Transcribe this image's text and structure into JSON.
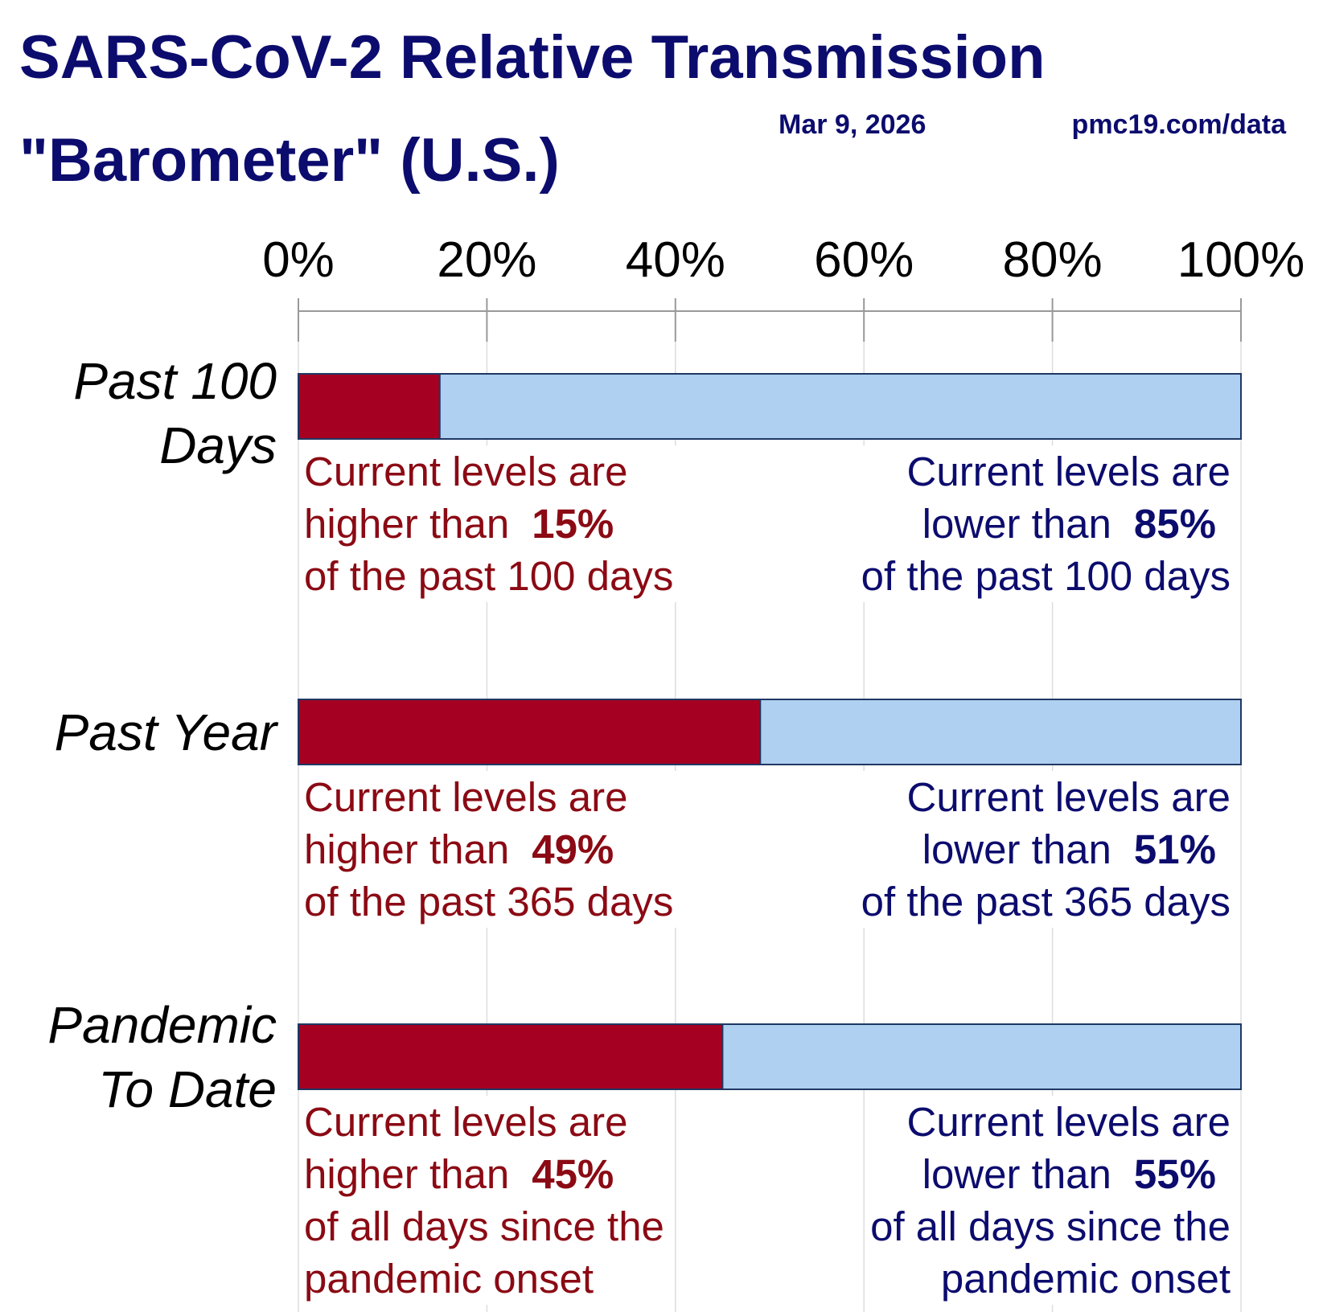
{
  "chart_data": {
    "type": "stacked-bar-horizontal",
    "title": "SARS-CoV-2 Relative Transmission \"Barometer\" (U.S.)",
    "date": "Mar 9, 2026",
    "source": "pmc19.com/data",
    "categories": [
      "Past 100 Days",
      "Past Year",
      "Pandemic To Date"
    ],
    "series": [
      {
        "color": "#a50021",
        "text_color": "#8b0a14",
        "values": [
          15,
          49,
          45
        ],
        "value_labels": [
          "15%",
          "49%",
          "45%"
        ]
      },
      {
        "color": "#afd0f0",
        "text_color": "#0c0c6e",
        "values": [
          85,
          51,
          55
        ],
        "value_labels": [
          "85%",
          "51%",
          "55%"
        ]
      }
    ],
    "notes": [
      {
        "left": [
          "Current levels are",
          "higher than",
          "of the past 100 days"
        ],
        "right": [
          "Current levels are",
          "lower than",
          "of the past 100 days"
        ]
      },
      {
        "left": [
          "Current levels are",
          "higher than",
          "of the past 365 days"
        ],
        "right": [
          "Current levels are",
          "lower than",
          "of the past 365 days"
        ]
      },
      {
        "left": [
          "Current levels are",
          "higher than",
          "of all days since the",
          "pandemic onset"
        ],
        "right": [
          "Current levels are",
          "lower than",
          "of all days since the",
          "pandemic onset"
        ]
      }
    ],
    "xlim": [
      0,
      100
    ],
    "xticks": [
      {
        "value": 0,
        "label": "0%"
      },
      {
        "value": 20,
        "label": "20%"
      },
      {
        "value": 40,
        "label": "40%"
      },
      {
        "value": 60,
        "label": "60%"
      },
      {
        "value": 80,
        "label": "80%"
      },
      {
        "value": 100,
        "label": "100%"
      }
    ],
    "grid": true
  }
}
